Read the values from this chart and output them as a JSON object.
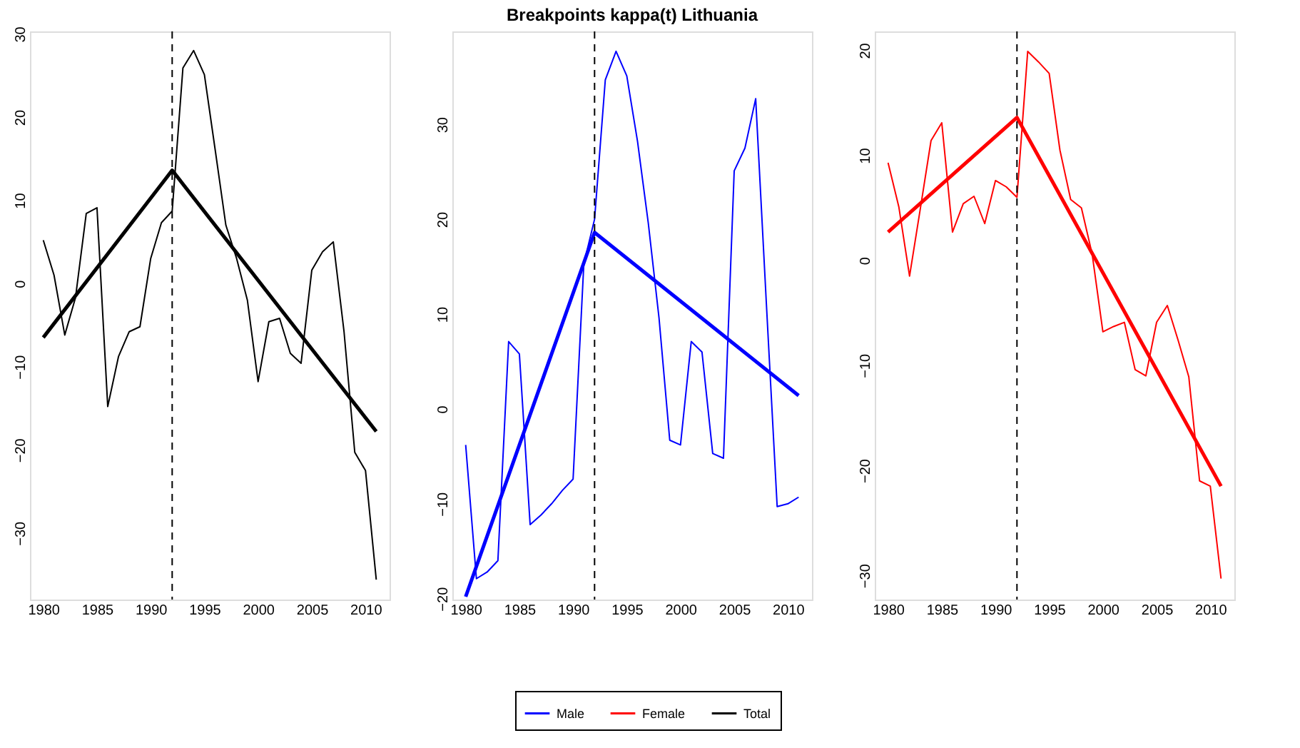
{
  "chart_data": [
    {
      "type": "line",
      "x": [
        1980,
        1981,
        1982,
        1983,
        1984,
        1985,
        1986,
        1987,
        1988,
        1989,
        1990,
        1991,
        1992,
        1993,
        1994,
        1995,
        1996,
        1997,
        1998,
        1999,
        2000,
        2001,
        2002,
        2003,
        2004,
        2005,
        2006,
        2007,
        2008,
        2009,
        2010,
        2011
      ],
      "xlim": [
        1978.76,
        2012.24
      ],
      "xticks": [
        1980,
        1985,
        1990,
        1995,
        2000,
        2005,
        2010
      ],
      "ylim": [
        -38.0,
        30.3
      ],
      "yticks": [
        -30,
        -20,
        -10,
        0,
        10,
        20,
        30
      ],
      "grid": false,
      "legend": "bottom",
      "series": [
        {
          "name": "Total",
          "color": "#000000",
          "values": [
            5.2,
            1.0,
            -6.2,
            -1.7,
            8.4,
            9.1,
            -14.8,
            -8.8,
            -5.8,
            -5.2,
            3.0,
            7.3,
            8.7,
            25.9,
            28.0,
            25.1,
            16.1,
            7.0,
            3.0,
            -2.0,
            -11.8,
            -4.6,
            -4.2,
            -8.4,
            -9.6,
            1.6,
            3.8,
            5.0,
            -5.8,
            -20.3,
            -22.5,
            -35.6
          ]
        },
        {
          "color": "#000000",
          "x": [
            1980,
            1992,
            2011
          ],
          "values": [
            -6.5,
            13.6,
            -17.8
          ]
        }
      ],
      "ref_lines": [
        {
          "axis": "x",
          "value": 1992,
          "color": "#000000",
          "line_style": "dashed"
        }
      ]
    },
    {
      "type": "line",
      "x": [
        1980,
        1981,
        1982,
        1983,
        1984,
        1985,
        1986,
        1987,
        1988,
        1989,
        1990,
        1991,
        1992,
        1993,
        1994,
        1995,
        1996,
        1997,
        1998,
        1999,
        2000,
        2001,
        2002,
        2003,
        2004,
        2005,
        2006,
        2007,
        2008,
        2009,
        2010,
        2011
      ],
      "xlim": [
        1978.76,
        2012.24
      ],
      "xticks": [
        1980,
        1985,
        1990,
        1995,
        2000,
        2005,
        2010
      ],
      "title": "Breakpoints kappa(t) Lithuania",
      "ylim": [
        -20.1,
        39.8
      ],
      "yticks": [
        -20,
        -10,
        0,
        10,
        20,
        30
      ],
      "grid": false,
      "legend": "bottom",
      "series": [
        {
          "name": "Male",
          "color": "#0000ff",
          "values": [
            -3.8,
            -17.9,
            -17.2,
            -16.0,
            7.1,
            5.8,
            -12.2,
            -11.2,
            -10.0,
            -8.6,
            -7.4,
            15.3,
            20.0,
            34.7,
            37.7,
            35.1,
            28.2,
            19.6,
            9.6,
            -3.3,
            -3.8,
            7.1,
            6.0,
            -4.7,
            -5.2,
            25.1,
            27.5,
            32.7,
            11.0,
            -10.3,
            -10.0,
            -9.3
          ]
        },
        {
          "color": "#0000ff",
          "x": [
            1980,
            1992,
            2011
          ],
          "values": [
            -19.8,
            18.6,
            1.4
          ]
        }
      ],
      "ref_lines": [
        {
          "axis": "x",
          "value": 1992,
          "color": "#000000",
          "line_style": "dashed"
        }
      ]
    },
    {
      "type": "line",
      "x": [
        1980,
        1981,
        1982,
        1983,
        1984,
        1985,
        1986,
        1987,
        1988,
        1989,
        1990,
        1991,
        1992,
        1993,
        1994,
        1995,
        1996,
        1997,
        1998,
        1999,
        2000,
        2001,
        2002,
        2003,
        2004,
        2005,
        2006,
        2007,
        2008,
        2009,
        2010,
        2011
      ],
      "xlim": [
        1978.76,
        2012.24
      ],
      "xticks": [
        1980,
        1985,
        1990,
        1995,
        2000,
        2005,
        2010
      ],
      "ylim": [
        -32.3,
        21.8
      ],
      "yticks": [
        -30,
        -20,
        -10,
        0,
        10,
        20
      ],
      "grid": false,
      "legend": "bottom",
      "series": [
        {
          "name": "Female",
          "color": "#ff0000",
          "values": [
            9.3,
            5.1,
            -1.5,
            4.9,
            11.4,
            13.1,
            2.7,
            5.4,
            6.1,
            3.5,
            7.6,
            7.0,
            6.0,
            19.9,
            18.9,
            17.8,
            10.5,
            5.8,
            5.0,
            0.6,
            -6.8,
            -6.3,
            -5.9,
            -10.4,
            -11.0,
            -5.9,
            -4.3,
            -7.6,
            -11.1,
            -21.0,
            -21.5,
            -30.3
          ]
        },
        {
          "color": "#ff0000",
          "x": [
            1980,
            1992,
            2011
          ],
          "values": [
            2.7,
            13.6,
            -21.5
          ]
        }
      ],
      "ref_lines": [
        {
          "axis": "x",
          "value": 1992,
          "color": "#000000",
          "line_style": "dashed"
        }
      ]
    }
  ]
}
